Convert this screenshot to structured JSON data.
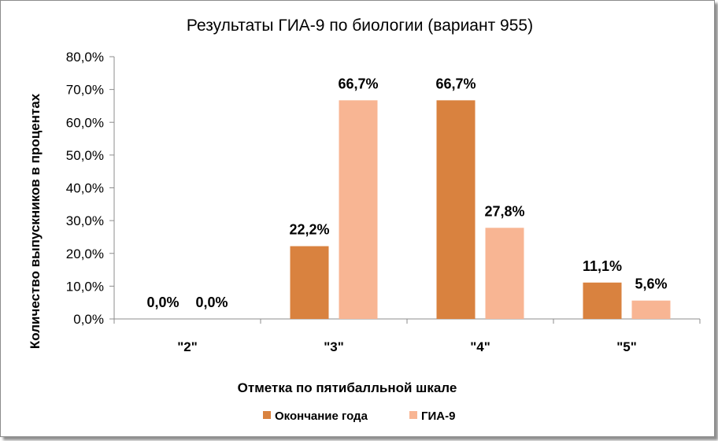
{
  "chart_data": {
    "type": "bar",
    "title": "Результаты ГИА-9 по биологии (вариант 955)",
    "xlabel": "Отметка по пятибалльной шкале",
    "ylabel": "Количество выпускников в процентах",
    "categories": [
      "\"2\"",
      "\"3\"",
      "\"4\"",
      "\"5\""
    ],
    "series": [
      {
        "name": "Окончание года",
        "color": "#d9823f",
        "values": [
          0.0,
          22.2,
          66.7,
          11.1
        ],
        "labels": [
          "0,0%",
          "22,2%",
          "66,7%",
          "11,1%"
        ]
      },
      {
        "name": "ГИА-9",
        "color": "#f8b593",
        "values": [
          0.0,
          66.7,
          27.8,
          5.6
        ],
        "labels": [
          "0,0%",
          "66,7%",
          "27,8%",
          "5,6%"
        ]
      }
    ],
    "ylim": [
      0,
      80
    ],
    "yticks": [
      0,
      10,
      20,
      30,
      40,
      50,
      60,
      70,
      80
    ],
    "ytick_labels": [
      "0,0%",
      "10,0%",
      "20,0%",
      "30,0%",
      "40,0%",
      "50,0%",
      "60,0%",
      "70,0%",
      "80,0%"
    ],
    "grid": false,
    "legend_position": "bottom"
  }
}
